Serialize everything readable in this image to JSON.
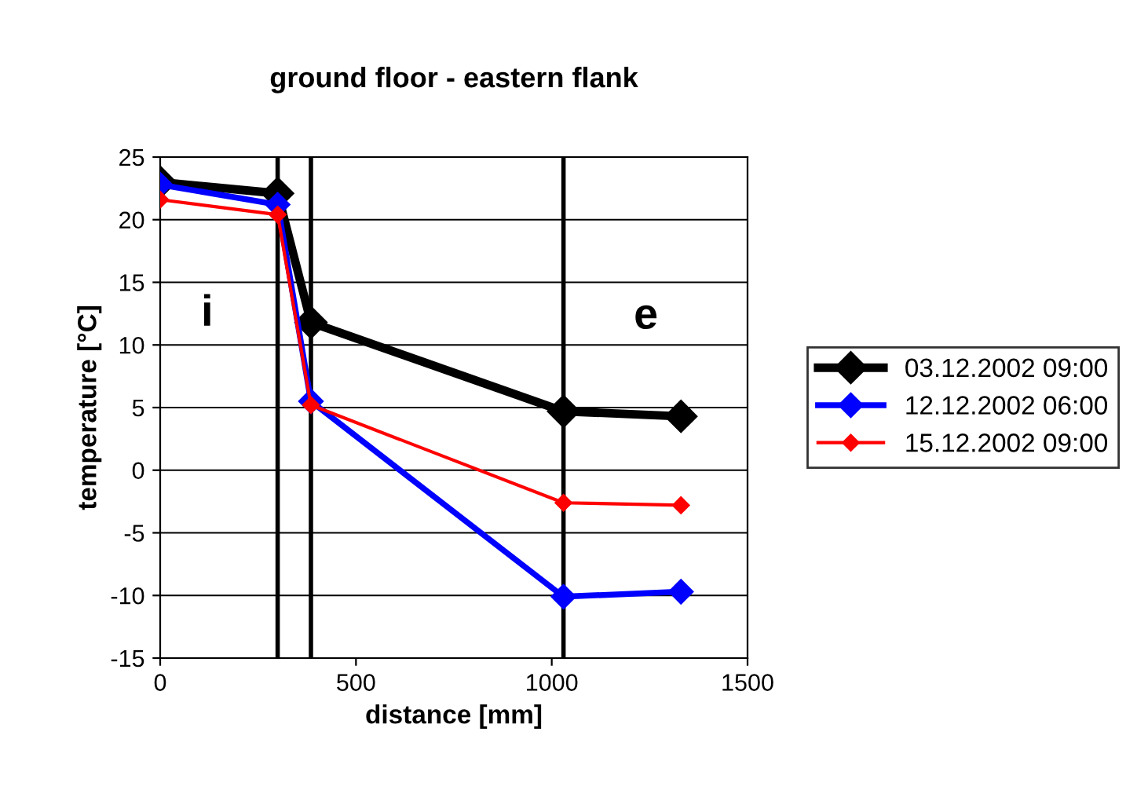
{
  "chart_data": {
    "type": "line",
    "title": "ground floor - eastern flank",
    "xlabel": "distance [mm]",
    "ylabel": "temperature [°C]",
    "x": [
      0,
      300,
      385,
      1030,
      1330
    ],
    "series": [
      {
        "name": "03.12.2002 09:00",
        "color": "#000000",
        "values": [
          23.0,
          22.1,
          11.8,
          4.7,
          4.3
        ]
      },
      {
        "name": "12.12.2002 06:00",
        "color": "#0000ff",
        "values": [
          22.8,
          21.2,
          5.5,
          -10.1,
          -9.7
        ]
      },
      {
        "name": "15.12.2002 09:00",
        "color": "#ff0000",
        "values": [
          21.6,
          20.4,
          5.2,
          -2.6,
          -2.8
        ]
      }
    ],
    "xlim": [
      0,
      1500
    ],
    "xticks": [
      0,
      500,
      1000,
      1500
    ],
    "ylim": [
      -15,
      25
    ],
    "yticks": [
      -15,
      -10,
      -5,
      0,
      5,
      10,
      15,
      20,
      25
    ],
    "grid": "y",
    "legend": "right",
    "marker": "diamond",
    "line_style": "solid",
    "ref_lines": [
      {
        "axis": "x",
        "value": 300,
        "color": "#000000"
      },
      {
        "axis": "x",
        "value": 385,
        "color": "#000000"
      },
      {
        "axis": "x",
        "value": 1030,
        "color": "#000000"
      }
    ],
    "annotations": [
      "i",
      "e"
    ]
  }
}
